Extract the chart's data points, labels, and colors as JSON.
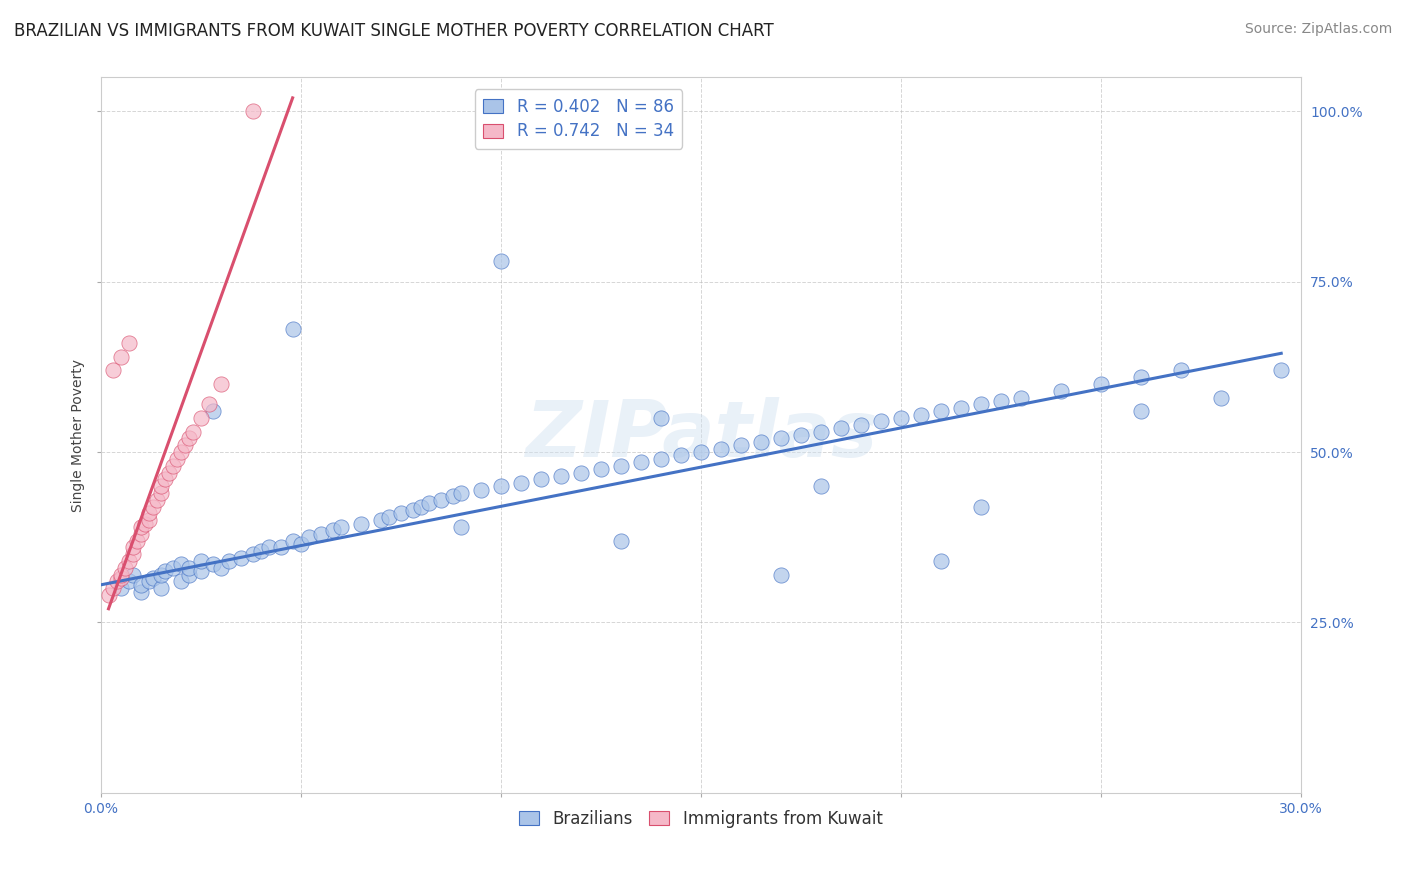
{
  "title": "BRAZILIAN VS IMMIGRANTS FROM KUWAIT SINGLE MOTHER POVERTY CORRELATION CHART",
  "source": "Source: ZipAtlas.com",
  "ylabel": "Single Mother Poverty",
  "watermark": "ZIPatlas",
  "xlim": [
    0.0,
    0.3
  ],
  "ylim": [
    0.0,
    1.05
  ],
  "xticks": [
    0.0,
    0.05,
    0.1,
    0.15,
    0.2,
    0.25,
    0.3
  ],
  "ytick_positions": [
    0.25,
    0.5,
    0.75,
    1.0
  ],
  "ytick_labels": [
    "25.0%",
    "50.0%",
    "75.0%",
    "100.0%"
  ],
  "blue_R": 0.402,
  "blue_N": 86,
  "pink_R": 0.742,
  "pink_N": 34,
  "blue_color": "#aac4e8",
  "pink_color": "#f5b8c8",
  "blue_line_color": "#4472c4",
  "pink_line_color": "#d94f6e",
  "blue_scatter_x": [
    0.005,
    0.007,
    0.008,
    0.01,
    0.01,
    0.012,
    0.013,
    0.015,
    0.015,
    0.016,
    0.018,
    0.02,
    0.02,
    0.022,
    0.022,
    0.025,
    0.025,
    0.028,
    0.03,
    0.032,
    0.035,
    0.038,
    0.04,
    0.042,
    0.045,
    0.048,
    0.05,
    0.052,
    0.055,
    0.058,
    0.06,
    0.065,
    0.07,
    0.072,
    0.075,
    0.078,
    0.08,
    0.082,
    0.085,
    0.088,
    0.09,
    0.095,
    0.1,
    0.105,
    0.11,
    0.115,
    0.12,
    0.125,
    0.13,
    0.135,
    0.14,
    0.145,
    0.15,
    0.155,
    0.16,
    0.165,
    0.17,
    0.175,
    0.18,
    0.185,
    0.19,
    0.195,
    0.2,
    0.205,
    0.21,
    0.215,
    0.22,
    0.225,
    0.23,
    0.24,
    0.25,
    0.26,
    0.27,
    0.028,
    0.048,
    0.1,
    0.14,
    0.18,
    0.22,
    0.26,
    0.09,
    0.13,
    0.17,
    0.21,
    0.28,
    0.295
  ],
  "blue_scatter_y": [
    0.3,
    0.31,
    0.32,
    0.295,
    0.305,
    0.31,
    0.315,
    0.3,
    0.32,
    0.325,
    0.33,
    0.31,
    0.335,
    0.32,
    0.33,
    0.325,
    0.34,
    0.335,
    0.33,
    0.34,
    0.345,
    0.35,
    0.355,
    0.36,
    0.36,
    0.37,
    0.365,
    0.375,
    0.38,
    0.385,
    0.39,
    0.395,
    0.4,
    0.405,
    0.41,
    0.415,
    0.42,
    0.425,
    0.43,
    0.435,
    0.44,
    0.445,
    0.45,
    0.455,
    0.46,
    0.465,
    0.47,
    0.475,
    0.48,
    0.485,
    0.49,
    0.495,
    0.5,
    0.505,
    0.51,
    0.515,
    0.52,
    0.525,
    0.53,
    0.535,
    0.54,
    0.545,
    0.55,
    0.555,
    0.56,
    0.565,
    0.57,
    0.575,
    0.58,
    0.59,
    0.6,
    0.61,
    0.62,
    0.56,
    0.68,
    0.78,
    0.55,
    0.45,
    0.42,
    0.56,
    0.39,
    0.37,
    0.32,
    0.34,
    0.58,
    0.62
  ],
  "pink_scatter_x": [
    0.002,
    0.003,
    0.004,
    0.005,
    0.005,
    0.006,
    0.007,
    0.008,
    0.008,
    0.009,
    0.01,
    0.01,
    0.011,
    0.012,
    0.012,
    0.013,
    0.014,
    0.015,
    0.015,
    0.016,
    0.017,
    0.018,
    0.019,
    0.02,
    0.021,
    0.022,
    0.023,
    0.025,
    0.027,
    0.03,
    0.003,
    0.005,
    0.007,
    0.038
  ],
  "pink_scatter_y": [
    0.29,
    0.3,
    0.31,
    0.315,
    0.32,
    0.33,
    0.34,
    0.35,
    0.36,
    0.37,
    0.38,
    0.39,
    0.395,
    0.4,
    0.41,
    0.42,
    0.43,
    0.44,
    0.45,
    0.46,
    0.47,
    0.48,
    0.49,
    0.5,
    0.51,
    0.52,
    0.53,
    0.55,
    0.57,
    0.6,
    0.62,
    0.64,
    0.66,
    1.0
  ],
  "blue_trend_x": [
    0.0,
    0.295
  ],
  "blue_trend_y": [
    0.305,
    0.645
  ],
  "pink_trend_x": [
    0.002,
    0.048
  ],
  "pink_trend_y": [
    0.27,
    1.02
  ],
  "title_fontsize": 12,
  "source_fontsize": 10,
  "axis_label_fontsize": 10,
  "tick_fontsize": 10,
  "legend_fontsize": 12,
  "background_color": "#ffffff",
  "grid_color": "#bbbbbb"
}
